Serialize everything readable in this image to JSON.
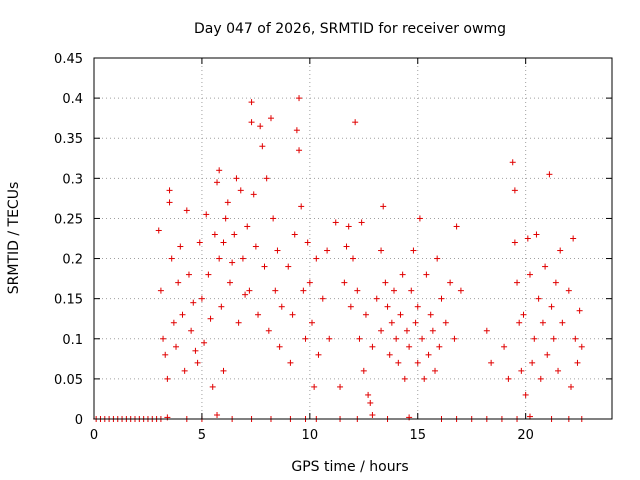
{
  "chart_data": {
    "type": "scatter",
    "title": "Day 047 of 2026, SRMTID for receiver owmg",
    "xlabel": "GPS time / hours",
    "ylabel": "SRMTID / TECUs",
    "xlim": [
      0,
      24
    ],
    "ylim": [
      0,
      0.45
    ],
    "grid": true,
    "marker": "+",
    "marker_color": "#e00000",
    "x_ticks": [
      "0",
      "5",
      "10",
      "15",
      "20"
    ],
    "y_ticks": [
      "0",
      "0.05",
      "0.1",
      "0.15",
      "0.2",
      "0.25",
      "0.3",
      "0.35",
      "0.4",
      "0.45"
    ],
    "series": [
      {
        "name": "SRMTID",
        "points": [
          [
            0.1,
            0
          ],
          [
            0.3,
            0
          ],
          [
            0.5,
            0
          ],
          [
            0.7,
            0
          ],
          [
            0.9,
            0
          ],
          [
            1.1,
            0
          ],
          [
            1.3,
            0
          ],
          [
            1.5,
            0
          ],
          [
            1.7,
            0
          ],
          [
            1.9,
            0
          ],
          [
            2.1,
            0
          ],
          [
            2.3,
            0
          ],
          [
            2.5,
            0
          ],
          [
            2.7,
            0
          ],
          [
            2.9,
            0
          ],
          [
            3.1,
            0
          ],
          [
            3.4,
            0.002
          ],
          [
            4.3,
            0
          ],
          [
            5.0,
            0
          ],
          [
            5.7,
            0.005
          ],
          [
            6.4,
            0
          ],
          [
            7.3,
            0
          ],
          [
            8.2,
            0
          ],
          [
            9.1,
            0
          ],
          [
            9.8,
            0
          ],
          [
            10.3,
            0
          ],
          [
            11.4,
            0
          ],
          [
            12.2,
            0
          ],
          [
            12.9,
            0.005
          ],
          [
            13.6,
            0
          ],
          [
            14.6,
            0.002
          ],
          [
            16.1,
            0
          ],
          [
            16.8,
            0
          ],
          [
            17.5,
            0
          ],
          [
            18.2,
            0
          ],
          [
            18.9,
            0
          ],
          [
            19.6,
            0
          ],
          [
            20.2,
            0.003
          ],
          [
            21.2,
            0
          ],
          [
            22.0,
            0
          ],
          [
            22.6,
            0
          ],
          [
            3.0,
            0.235
          ],
          [
            3.1,
            0.16
          ],
          [
            3.2,
            0.1
          ],
          [
            3.3,
            0.08
          ],
          [
            3.4,
            0.05
          ],
          [
            3.5,
            0.27
          ],
          [
            3.5,
            0.285
          ],
          [
            3.6,
            0.2
          ],
          [
            3.7,
            0.12
          ],
          [
            3.8,
            0.09
          ],
          [
            3.9,
            0.17
          ],
          [
            4.0,
            0.215
          ],
          [
            4.1,
            0.13
          ],
          [
            4.2,
            0.06
          ],
          [
            4.3,
            0.26
          ],
          [
            4.4,
            0.18
          ],
          [
            4.5,
            0.11
          ],
          [
            4.6,
            0.145
          ],
          [
            4.7,
            0.085
          ],
          [
            4.8,
            0.07
          ],
          [
            4.9,
            0.22
          ],
          [
            5.0,
            0.15
          ],
          [
            5.1,
            0.095
          ],
          [
            5.2,
            0.255
          ],
          [
            5.3,
            0.18
          ],
          [
            5.4,
            0.125
          ],
          [
            5.5,
            0.04
          ],
          [
            5.6,
            0.23
          ],
          [
            5.7,
            0.295
          ],
          [
            5.8,
            0.31
          ],
          [
            5.8,
            0.2
          ],
          [
            5.9,
            0.14
          ],
          [
            6.0,
            0.22
          ],
          [
            6.0,
            0.06
          ],
          [
            6.1,
            0.25
          ],
          [
            6.2,
            0.27
          ],
          [
            6.3,
            0.17
          ],
          [
            6.4,
            0.195
          ],
          [
            6.5,
            0.23
          ],
          [
            6.6,
            0.3
          ],
          [
            6.7,
            0.12
          ],
          [
            6.8,
            0.285
          ],
          [
            6.9,
            0.2
          ],
          [
            7.0,
            0.155
          ],
          [
            7.1,
            0.24
          ],
          [
            7.2,
            0.16
          ],
          [
            7.3,
            0.37
          ],
          [
            7.3,
            0.395
          ],
          [
            7.4,
            0.28
          ],
          [
            7.5,
            0.215
          ],
          [
            7.6,
            0.13
          ],
          [
            7.7,
            0.365
          ],
          [
            7.8,
            0.34
          ],
          [
            7.9,
            0.19
          ],
          [
            8.0,
            0.3
          ],
          [
            8.1,
            0.11
          ],
          [
            8.2,
            0.375
          ],
          [
            8.3,
            0.25
          ],
          [
            8.4,
            0.16
          ],
          [
            8.5,
            0.21
          ],
          [
            8.6,
            0.09
          ],
          [
            8.7,
            0.14
          ],
          [
            9.0,
            0.19
          ],
          [
            9.1,
            0.07
          ],
          [
            9.2,
            0.13
          ],
          [
            9.3,
            0.23
          ],
          [
            9.4,
            0.36
          ],
          [
            9.5,
            0.4
          ],
          [
            9.5,
            0.335
          ],
          [
            9.6,
            0.265
          ],
          [
            9.7,
            0.16
          ],
          [
            9.8,
            0.1
          ],
          [
            9.9,
            0.22
          ],
          [
            10.0,
            0.17
          ],
          [
            10.1,
            0.12
          ],
          [
            10.2,
            0.04
          ],
          [
            10.3,
            0.2
          ],
          [
            10.4,
            0.08
          ],
          [
            10.6,
            0.15
          ],
          [
            10.8,
            0.21
          ],
          [
            10.9,
            0.1
          ],
          [
            11.2,
            0.245
          ],
          [
            11.4,
            0.04
          ],
          [
            11.6,
            0.17
          ],
          [
            11.7,
            0.215
          ],
          [
            11.8,
            0.24
          ],
          [
            11.9,
            0.14
          ],
          [
            12.0,
            0.2
          ],
          [
            12.1,
            0.37
          ],
          [
            12.2,
            0.16
          ],
          [
            12.3,
            0.1
          ],
          [
            12.4,
            0.245
          ],
          [
            12.5,
            0.06
          ],
          [
            12.6,
            0.13
          ],
          [
            12.7,
            0.03
          ],
          [
            12.8,
            0.02
          ],
          [
            12.9,
            0.09
          ],
          [
            13.1,
            0.15
          ],
          [
            13.3,
            0.11
          ],
          [
            13.3,
            0.21
          ],
          [
            13.4,
            0.265
          ],
          [
            13.5,
            0.17
          ],
          [
            13.6,
            0.14
          ],
          [
            13.7,
            0.08
          ],
          [
            13.8,
            0.12
          ],
          [
            13.9,
            0.16
          ],
          [
            14.0,
            0.1
          ],
          [
            14.1,
            0.07
          ],
          [
            14.2,
            0.13
          ],
          [
            14.3,
            0.18
          ],
          [
            14.4,
            0.05
          ],
          [
            14.5,
            0.11
          ],
          [
            14.6,
            0.09
          ],
          [
            14.7,
            0.16
          ],
          [
            14.8,
            0.21
          ],
          [
            14.9,
            0.12
          ],
          [
            15.0,
            0.07
          ],
          [
            15.0,
            0.14
          ],
          [
            15.1,
            0.25
          ],
          [
            15.2,
            0.1
          ],
          [
            15.3,
            0.05
          ],
          [
            15.4,
            0.18
          ],
          [
            15.5,
            0.08
          ],
          [
            15.6,
            0.13
          ],
          [
            15.7,
            0.11
          ],
          [
            15.8,
            0.06
          ],
          [
            15.9,
            0.2
          ],
          [
            16.0,
            0.09
          ],
          [
            16.1,
            0.15
          ],
          [
            16.3,
            0.12
          ],
          [
            16.5,
            0.17
          ],
          [
            16.7,
            0.1
          ],
          [
            16.8,
            0.24
          ],
          [
            17.0,
            0.16
          ],
          [
            18.2,
            0.11
          ],
          [
            18.4,
            0.07
          ],
          [
            19.0,
            0.09
          ],
          [
            19.2,
            0.05
          ],
          [
            19.4,
            0.32
          ],
          [
            19.5,
            0.285
          ],
          [
            19.5,
            0.22
          ],
          [
            19.6,
            0.17
          ],
          [
            19.7,
            0.12
          ],
          [
            19.8,
            0.06
          ],
          [
            19.9,
            0.13
          ],
          [
            20.0,
            0.03
          ],
          [
            20.1,
            0.225
          ],
          [
            20.2,
            0.18
          ],
          [
            20.3,
            0.07
          ],
          [
            20.4,
            0.1
          ],
          [
            20.5,
            0.23
          ],
          [
            20.6,
            0.15
          ],
          [
            20.7,
            0.05
          ],
          [
            20.8,
            0.12
          ],
          [
            20.9,
            0.19
          ],
          [
            21.0,
            0.08
          ],
          [
            21.1,
            0.305
          ],
          [
            21.2,
            0.14
          ],
          [
            21.3,
            0.1
          ],
          [
            21.4,
            0.17
          ],
          [
            21.5,
            0.06
          ],
          [
            21.6,
            0.21
          ],
          [
            21.7,
            0.12
          ],
          [
            22.0,
            0.16
          ],
          [
            22.1,
            0.04
          ],
          [
            22.2,
            0.225
          ],
          [
            22.3,
            0.1
          ],
          [
            22.4,
            0.07
          ],
          [
            22.5,
            0.135
          ],
          [
            22.6,
            0.09
          ]
        ]
      }
    ]
  }
}
